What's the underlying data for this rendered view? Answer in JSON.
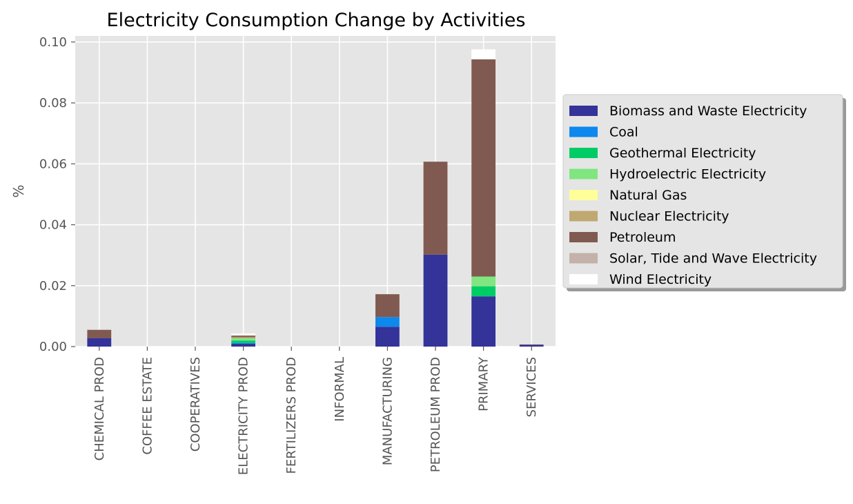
{
  "chart_data": {
    "type": "bar",
    "stacked": true,
    "title": "Electricity Consumption Change by Activities",
    "xlabel": "",
    "ylabel": "%",
    "ylim": [
      0,
      0.102
    ],
    "yticks": [
      "0.00",
      "0.02",
      "0.04",
      "0.06",
      "0.08",
      "0.10"
    ],
    "ytick_values": [
      0,
      0.02,
      0.04,
      0.06,
      0.08,
      0.1
    ],
    "grid": true,
    "legend_position": "right",
    "categories": [
      "CHEMICAL PROD",
      "COFFEE ESTATE",
      "COOPERATIVES",
      "ELECTRICITY PROD",
      "FERTILIZERS PROD",
      "INFORMAL",
      "MANUFACTURING",
      "PETROLEUM PROD",
      "PRIMARY",
      "SERVICES"
    ],
    "series": [
      {
        "name": "Biomass and Waste Electricity",
        "color": "#333399",
        "values": [
          0.0028,
          0,
          0,
          0.0009,
          0,
          0,
          0.0065,
          0.0302,
          0.0165,
          0.0006
        ]
      },
      {
        "name": "Coal",
        "color": "#0d88ec",
        "values": [
          0,
          0,
          0,
          0.0003,
          0,
          0,
          0.0032,
          0,
          0,
          0
        ]
      },
      {
        "name": "Geothermal Electricity",
        "color": "#00cc66",
        "values": [
          0,
          0,
          0,
          0.0008,
          0,
          0,
          0,
          0,
          0.0033,
          0
        ]
      },
      {
        "name": "Hydroelectric Electricity",
        "color": "#80e680",
        "values": [
          0,
          0,
          0,
          0.0007,
          0,
          0,
          0,
          0,
          0.0032,
          0
        ]
      },
      {
        "name": "Natural Gas",
        "color": "#ffff99",
        "values": [
          0,
          0,
          0,
          0,
          0,
          0,
          0,
          0,
          0,
          0
        ]
      },
      {
        "name": "Nuclear Electricity",
        "color": "#bfa970",
        "values": [
          0,
          0,
          0,
          0.0004,
          0,
          0,
          0,
          0,
          0,
          0
        ]
      },
      {
        "name": "Petroleum",
        "color": "#805a50",
        "values": [
          0.0027,
          0,
          0,
          0.0005,
          0,
          0,
          0.0075,
          0.0305,
          0.0713,
          0.0001
        ]
      },
      {
        "name": "Solar, Tide and Wave Electricity",
        "color": "#c3b1aa",
        "values": [
          0,
          0,
          0,
          0.0001,
          0,
          0,
          0,
          0,
          0,
          0
        ]
      },
      {
        "name": "Wind Electricity",
        "color": "#ffffff",
        "values": [
          0,
          0,
          0,
          0.0006,
          0,
          0,
          0,
          0,
          0.0033,
          0
        ]
      }
    ]
  }
}
